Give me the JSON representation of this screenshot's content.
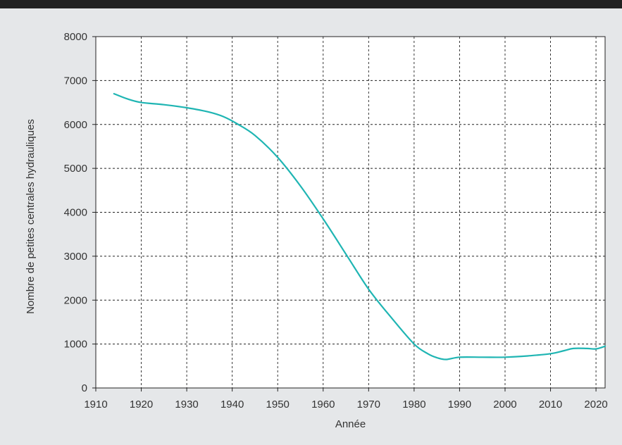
{
  "colors": {
    "background": "#e5e7e9",
    "plot_background": "#ffffff",
    "line": "#1fb5b3",
    "grid": "#222222",
    "top_bar": "#222222"
  },
  "chart_data": {
    "type": "line",
    "title": "",
    "xlabel": "Année",
    "ylabel": "Nombre de petites centrales hydrauliques",
    "xlim": [
      1910,
      2022
    ],
    "ylim": [
      0,
      8000
    ],
    "grid": true,
    "grid_style": "dashed",
    "xticks": [
      1910,
      1920,
      1930,
      1940,
      1950,
      1960,
      1970,
      1980,
      1990,
      2000,
      2010,
      2020
    ],
    "yticks": [
      0,
      1000,
      2000,
      3000,
      4000,
      5000,
      6000,
      7000,
      8000
    ],
    "series": [
      {
        "x": [
          1914,
          1917,
          1920,
          1925,
          1930,
          1935,
          1938,
          1941,
          1945,
          1950,
          1955,
          1960,
          1965,
          1970,
          1975,
          1980,
          1983,
          1985,
          1987,
          1990,
          1995,
          2000,
          2005,
          2010,
          2013,
          2015,
          2018,
          2020,
          2022
        ],
        "y": [
          6700,
          6580,
          6500,
          6450,
          6380,
          6280,
          6180,
          6020,
          5750,
          5250,
          4600,
          3850,
          3050,
          2250,
          1600,
          1000,
          780,
          690,
          650,
          700,
          700,
          700,
          730,
          780,
          850,
          900,
          900,
          890,
          950
        ]
      }
    ]
  }
}
